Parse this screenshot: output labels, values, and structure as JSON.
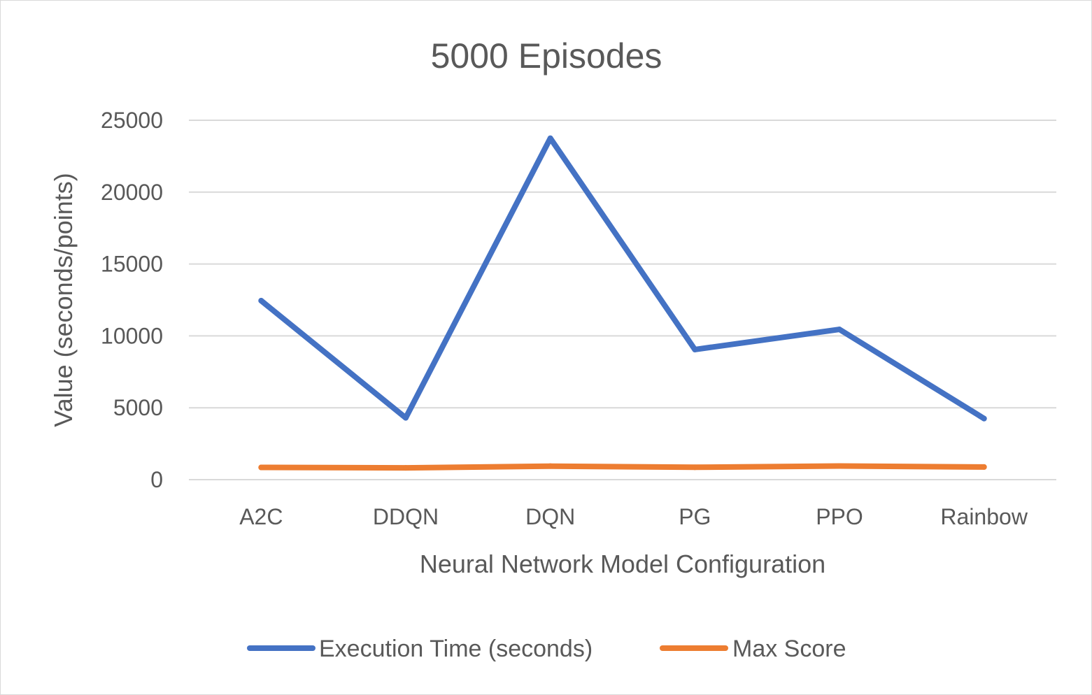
{
  "chart_data": {
    "type": "line",
    "title": "5000 Episodes",
    "xlabel": "Neural Network Model Configuration",
    "ylabel": "Value (seconds/points)",
    "categories": [
      "A2C",
      "DDQN",
      "DQN",
      "PG",
      "PPO",
      "Rainbow"
    ],
    "ylim": [
      0,
      25000
    ],
    "yticks": [
      0,
      5000,
      10000,
      15000,
      20000,
      25000
    ],
    "ytick_labels": [
      "0",
      "5000",
      "10000",
      "15000",
      "20000",
      "25000"
    ],
    "grid": true,
    "legend_position": "bottom",
    "series": [
      {
        "name": "Execution Time (seconds)",
        "color": "#4472C4",
        "values": [
          12450,
          4300,
          23750,
          9050,
          10450,
          4250
        ]
      },
      {
        "name": "Max Score",
        "color": "#ED7D31",
        "values": [
          850,
          820,
          940,
          860,
          950,
          880
        ]
      }
    ]
  }
}
